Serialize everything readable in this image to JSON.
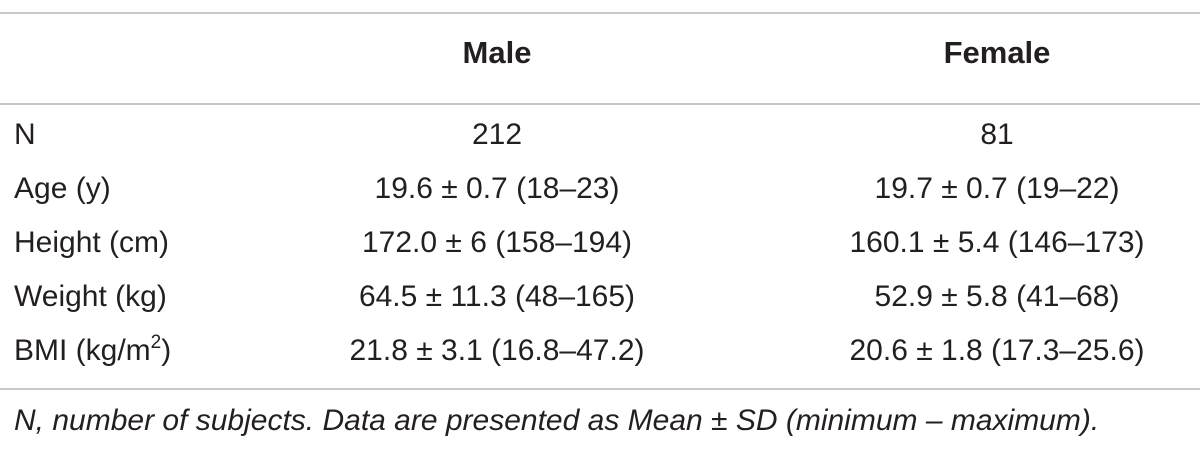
{
  "table": {
    "columns": [
      "",
      "Male",
      "Female"
    ],
    "rows": [
      {
        "label": "N",
        "male": "212",
        "female": "81"
      },
      {
        "label": "Age (y)",
        "male": "19.6 ± 0.7 (18–23)",
        "female": "19.7 ± 0.7 (19–22)"
      },
      {
        "label": "Height (cm)",
        "male": "172.0 ± 6 (158–194)",
        "female": "160.1 ± 5.4 (146–173)"
      },
      {
        "label": "Weight (kg)",
        "male": "64.5 ± 11.3 (48–165)",
        "female": "52.9 ± 5.8 (41–68)"
      },
      {
        "label_prefix": "BMI (kg/m",
        "label_sup": "2",
        "label_suffix": ")",
        "male": "21.8 ± 3.1 (16.8–47.2)",
        "female": "20.6 ± 1.8 (17.3–25.6)"
      }
    ]
  },
  "footnote": "N, number of subjects. Data are presented as Mean ± SD (minimum – maximum)."
}
